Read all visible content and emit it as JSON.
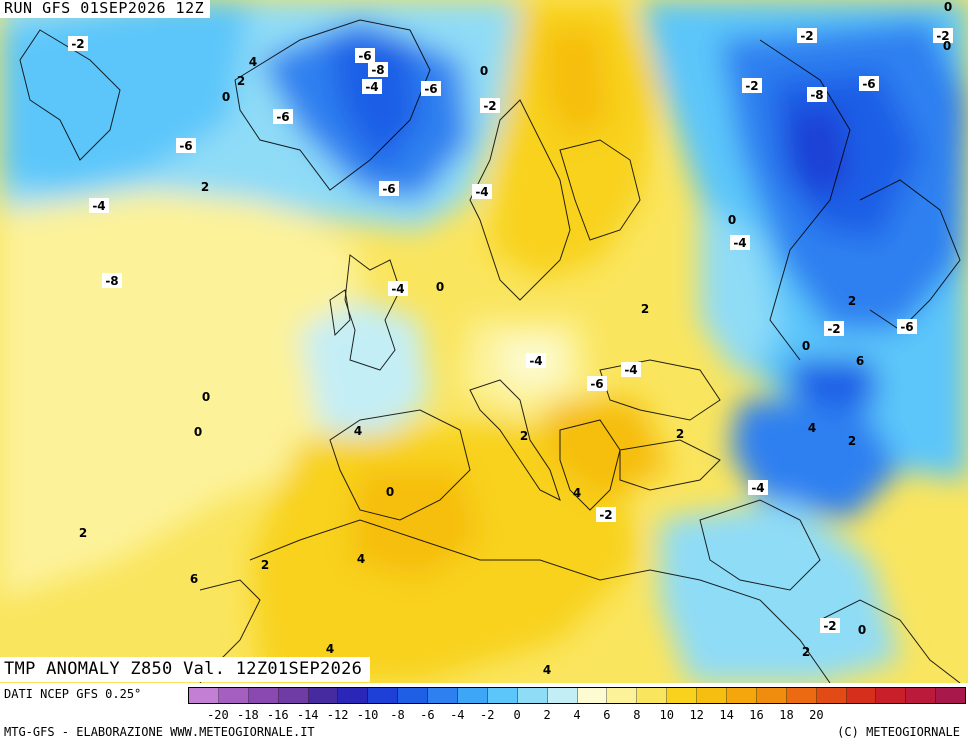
{
  "header": {
    "run_label": "RUN GFS 01SEP2026 12Z"
  },
  "title": "TMP ANOMALY Z850 Val. 12Z01SEP2026",
  "footer": {
    "source": "DATI NCEP GFS 0.25°",
    "credits": "MTG-GFS - ELABORAZIONE WWW.METEOGIORNALE.IT",
    "copyright": "(C) METEOGIORNALE"
  },
  "scale": {
    "tick_labels": [
      "-20",
      "-18",
      "-16",
      "-14",
      "-12",
      "-10",
      "-8",
      "-6",
      "-4",
      "-2",
      "0",
      "2",
      "4",
      "6",
      "8",
      "10",
      "12",
      "14",
      "16",
      "18",
      "20"
    ],
    "colors": [
      "#c27fd4",
      "#a45fc0",
      "#8a49b0",
      "#6e3ca4",
      "#462aa0",
      "#2a26b8",
      "#1e40d6",
      "#1f5fe6",
      "#2e80f0",
      "#3ea6f7",
      "#5cc6fa",
      "#8fdcf7",
      "#c4eef6",
      "#fdfbd2",
      "#fcf29a",
      "#fae55e",
      "#f8d21c",
      "#f6be10",
      "#f4a60c",
      "#f08c0e",
      "#eb6a12",
      "#e24a16",
      "#d6301c",
      "#c91f2a",
      "#bb1a3a",
      "#a9184a"
    ]
  },
  "contour_labels": [
    "-2",
    "4",
    "2",
    "0",
    "-6",
    "-8",
    "-4",
    "-6",
    "-6",
    "0",
    "-2",
    "-6",
    "-4",
    "-4",
    "-6",
    "-8",
    "-6",
    "-2",
    "-2",
    "0",
    "-4",
    "-8",
    "-4",
    "0",
    "2",
    "2",
    "-2",
    "0",
    "6",
    "-6",
    "-4",
    "-4",
    "-6",
    "0",
    "0",
    "4",
    "2",
    "4",
    "2",
    "0",
    "4",
    "-4",
    "-2",
    "4",
    "2",
    "6",
    "4",
    "-2",
    "0",
    "2",
    "4",
    "2",
    "2",
    "-2",
    "0",
    "0",
    "2"
  ]
}
